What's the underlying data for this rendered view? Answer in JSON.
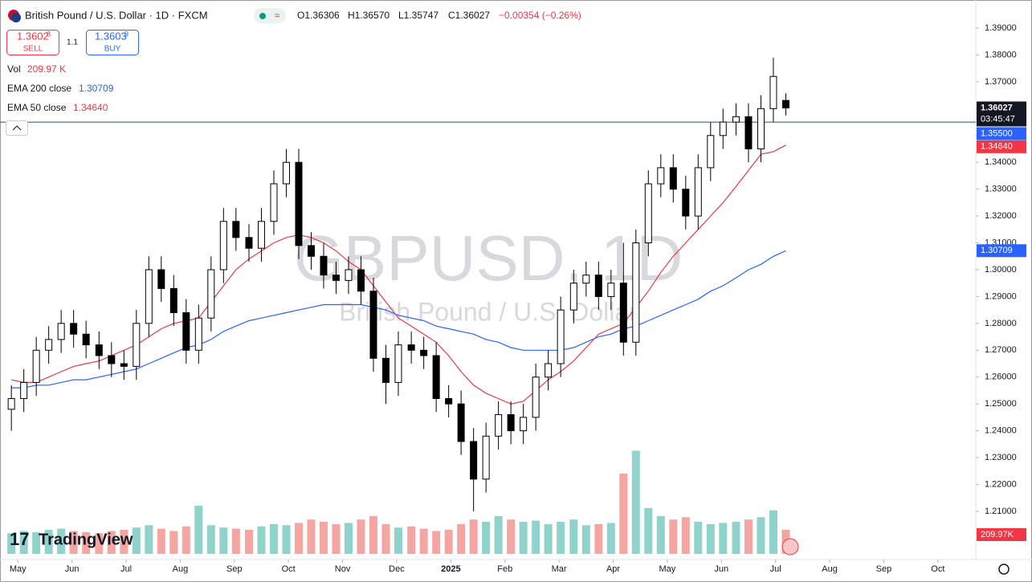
{
  "header": {
    "symbol_title": "British Pound / U.S. Dollar · 1D · FXCM",
    "ohlc": [
      "O1.36306",
      "H1.36570",
      "L1.35747",
      "C1.36027",
      "−0.00354 (−0.26%)"
    ],
    "sell_price": "1.3602",
    "sell_pip": "8",
    "sell_label": "SELL",
    "spread": "1.1",
    "buy_price": "1.3603",
    "buy_pip": "9",
    "buy_label": "BUY",
    "volume_name": "Vol",
    "volume_label": "209.97 K",
    "watermark_symbol": "GBPUSD, 1D",
    "watermark_description": "British Pound / U.S. Dollar",
    "logo": "TradingView"
  },
  "chart_data": {
    "type": "candlestick",
    "x": [
      -0.12,
      0.11,
      0.34,
      0.57,
      0.8,
      1.03,
      1.26,
      1.5,
      1.73,
      1.96,
      2.19,
      2.42,
      2.65,
      2.88,
      3.11,
      3.34,
      3.57,
      3.8,
      4.03,
      4.27,
      4.5,
      4.73,
      4.96,
      5.19,
      5.42,
      5.65,
      5.88,
      6.11,
      6.34,
      6.57,
      6.8,
      7.03,
      7.27,
      7.5,
      7.73,
      7.96,
      8.19,
      8.42,
      8.65,
      8.88,
      9.11,
      9.34,
      9.57,
      9.8,
      10.03,
      10.27,
      10.5,
      10.73,
      10.96,
      11.19,
      11.42,
      11.65,
      11.88,
      12.11,
      12.34,
      12.57,
      12.8,
      13.03,
      13.27,
      13.5,
      13.73,
      13.96,
      14.19
    ],
    "open": [
      1.248,
      1.252,
      1.258,
      1.27,
      1.274,
      1.28,
      1.276,
      1.272,
      1.268,
      1.265,
      1.264,
      1.28,
      1.3,
      1.293,
      1.284,
      1.27,
      1.282,
      1.3,
      1.318,
      1.312,
      1.308,
      1.318,
      1.332,
      1.34,
      1.309,
      1.305,
      1.298,
      1.296,
      1.3,
      1.292,
      1.267,
      1.258,
      1.272,
      1.27,
      1.268,
      1.252,
      1.25,
      1.236,
      1.222,
      1.238,
      1.246,
      1.24,
      1.245,
      1.26,
      1.265,
      1.285,
      1.295,
      1.298,
      1.29,
      1.295,
      1.273,
      1.31,
      1.332,
      1.338,
      1.33,
      1.32,
      1.338,
      1.35,
      1.355,
      1.357,
      1.345,
      1.36,
      1.36306
    ],
    "high": [
      1.257,
      1.263,
      1.275,
      1.279,
      1.285,
      1.285,
      1.281,
      1.277,
      1.273,
      1.27,
      1.285,
      1.305,
      1.305,
      1.298,
      1.289,
      1.287,
      1.305,
      1.323,
      1.323,
      1.317,
      1.323,
      1.337,
      1.345,
      1.345,
      1.314,
      1.31,
      1.303,
      1.305,
      1.305,
      1.297,
      1.272,
      1.277,
      1.277,
      1.275,
      1.273,
      1.257,
      1.255,
      1.241,
      1.243,
      1.251,
      1.251,
      1.25,
      1.265,
      1.27,
      1.29,
      1.3,
      1.303,
      1.303,
      1.3,
      1.31,
      1.315,
      1.337,
      1.343,
      1.343,
      1.335,
      1.343,
      1.355,
      1.36,
      1.362,
      1.362,
      1.365,
      1.379,
      1.3657
    ],
    "low": [
      1.24,
      1.247,
      1.253,
      1.265,
      1.269,
      1.271,
      1.267,
      1.263,
      1.26,
      1.259,
      1.259,
      1.275,
      1.288,
      1.279,
      1.265,
      1.265,
      1.277,
      1.295,
      1.307,
      1.303,
      1.303,
      1.313,
      1.327,
      1.304,
      1.3,
      1.293,
      1.291,
      1.291,
      1.287,
      1.262,
      1.25,
      1.253,
      1.265,
      1.263,
      1.247,
      1.245,
      1.231,
      1.21,
      1.217,
      1.233,
      1.235,
      1.235,
      1.24,
      1.255,
      1.26,
      1.28,
      1.29,
      1.285,
      1.285,
      1.268,
      1.268,
      1.305,
      1.327,
      1.325,
      1.315,
      1.315,
      1.333,
      1.345,
      1.35,
      1.34,
      1.34,
      1.355,
      1.35747
    ],
    "close": [
      1.252,
      1.258,
      1.27,
      1.274,
      1.28,
      1.276,
      1.272,
      1.268,
      1.265,
      1.264,
      1.28,
      1.3,
      1.293,
      1.284,
      1.27,
      1.282,
      1.3,
      1.318,
      1.312,
      1.308,
      1.318,
      1.332,
      1.34,
      1.309,
      1.305,
      1.298,
      1.296,
      1.3,
      1.292,
      1.267,
      1.258,
      1.272,
      1.27,
      1.268,
      1.252,
      1.25,
      1.236,
      1.222,
      1.238,
      1.246,
      1.24,
      1.245,
      1.26,
      1.265,
      1.285,
      1.295,
      1.298,
      1.29,
      1.295,
      1.273,
      1.31,
      1.332,
      1.338,
      1.33,
      1.32,
      1.338,
      1.35,
      1.355,
      1.357,
      1.345,
      1.36,
      1.372,
      1.36027
    ],
    "volume": [
      180,
      200,
      190,
      210,
      220,
      200,
      190,
      180,
      200,
      210,
      230,
      250,
      220,
      200,
      240,
      420,
      250,
      230,
      220,
      210,
      240,
      260,
      250,
      270,
      300,
      280,
      260,
      270,
      300,
      330,
      260,
      230,
      240,
      220,
      200,
      210,
      260,
      300,
      280,
      330,
      300,
      280,
      290,
      260,
      280,
      300,
      250,
      260,
      270,
      700,
      900,
      400,
      330,
      300,
      320,
      280,
      260,
      270,
      280,
      300,
      320,
      380,
      209.97
    ],
    "volume_axis_label": "209.97K",
    "up_color": "#ffffff",
    "down_color": "#000000",
    "volume_up_color": "#8fd3cc",
    "volume_down_color": "#f5a6a3",
    "series": [
      {
        "name": "EMA 200 close",
        "color": "#2962ff",
        "last_label": "1.30709",
        "values": [
          1.256,
          1.256,
          1.257,
          1.257,
          1.258,
          1.259,
          1.259,
          1.26,
          1.261,
          1.262,
          1.263,
          1.265,
          1.267,
          1.269,
          1.271,
          1.272,
          1.274,
          1.277,
          1.279,
          1.281,
          1.282,
          1.283,
          1.284,
          1.285,
          1.286,
          1.287,
          1.287,
          1.287,
          1.287,
          1.286,
          1.285,
          1.283,
          1.282,
          1.281,
          1.279,
          1.278,
          1.277,
          1.276,
          1.274,
          1.273,
          1.271,
          1.27,
          1.27,
          1.27,
          1.27,
          1.271,
          1.273,
          1.275,
          1.276,
          1.278,
          1.279,
          1.281,
          1.283,
          1.285,
          1.287,
          1.289,
          1.292,
          1.294,
          1.297,
          1.3,
          1.302,
          1.305,
          1.30709
        ]
      },
      {
        "name": "EMA 50 close",
        "color": "#f23645",
        "last_label": "1.34640",
        "values": [
          1.259,
          1.258,
          1.258,
          1.26,
          1.262,
          1.264,
          1.265,
          1.266,
          1.268,
          1.27,
          1.272,
          1.275,
          1.278,
          1.28,
          1.281,
          1.282,
          1.288,
          1.294,
          1.3,
          1.304,
          1.307,
          1.31,
          1.312,
          1.313,
          1.312,
          1.31,
          1.307,
          1.303,
          1.3,
          1.294,
          1.288,
          1.282,
          1.279,
          1.276,
          1.273,
          1.268,
          1.262,
          1.257,
          1.254,
          1.252,
          1.25,
          1.251,
          1.255,
          1.259,
          1.262,
          1.266,
          1.271,
          1.276,
          1.278,
          1.28,
          1.286,
          1.292,
          1.299,
          1.305,
          1.31,
          1.315,
          1.32,
          1.325,
          1.331,
          1.337,
          1.343,
          1.344,
          1.3464
        ]
      }
    ],
    "hline": {
      "value": 1.355,
      "label": "1.35500",
      "color": "#2a4a8a"
    },
    "countdown": "03:45:47",
    "ylim": [
      1.19,
      1.4
    ],
    "yticks": [
      {
        "value": 1.21,
        "label": "1.21000"
      },
      {
        "value": 1.22,
        "label": "1.22000"
      },
      {
        "value": 1.23,
        "label": "1.23000"
      },
      {
        "value": 1.24,
        "label": "1.24000"
      },
      {
        "value": 1.25,
        "label": "1.25000"
      },
      {
        "value": 1.26,
        "label": "1.26000"
      },
      {
        "value": 1.27,
        "label": "1.27000"
      },
      {
        "value": 1.28,
        "label": "1.28000"
      },
      {
        "value": 1.29,
        "label": "1.29000"
      },
      {
        "value": 1.3,
        "label": "1.30000"
      },
      {
        "value": 1.31,
        "label": "1.31000"
      },
      {
        "value": 1.32,
        "label": "1.32000"
      },
      {
        "value": 1.33,
        "label": "1.33000"
      },
      {
        "value": 1.34,
        "label": "1.34000"
      },
      {
        "value": 1.35,
        "label": "1.35000"
      },
      {
        "value": 1.36,
        "label": "1.36000"
      },
      {
        "value": 1.37,
        "label": "1.37000"
      },
      {
        "value": 1.38,
        "label": "1.38000"
      },
      {
        "value": 1.39,
        "label": "1.39000"
      }
    ],
    "xlim": [
      -0.33,
      17.7
    ],
    "xticks": [
      {
        "value": 0,
        "label": "May"
      },
      {
        "value": 1,
        "label": "Jun"
      },
      {
        "value": 2,
        "label": "Jul"
      },
      {
        "value": 3,
        "label": "Aug"
      },
      {
        "value": 4,
        "label": "Sep"
      },
      {
        "value": 5,
        "label": "Oct"
      },
      {
        "value": 6,
        "label": "Nov"
      },
      {
        "value": 7,
        "label": "Dec"
      },
      {
        "value": 8,
        "label": "2025"
      },
      {
        "value": 9,
        "label": "Feb"
      },
      {
        "value": 10,
        "label": "Mar"
      },
      {
        "value": 11,
        "label": "Apr"
      },
      {
        "value": 12,
        "label": "May"
      },
      {
        "value": 13,
        "label": "Jun"
      },
      {
        "value": 14,
        "label": "Jul"
      },
      {
        "value": 15,
        "label": "Aug"
      },
      {
        "value": 16,
        "label": "Sep"
      },
      {
        "value": 17,
        "label": "Oct"
      }
    ],
    "grid": false
  }
}
